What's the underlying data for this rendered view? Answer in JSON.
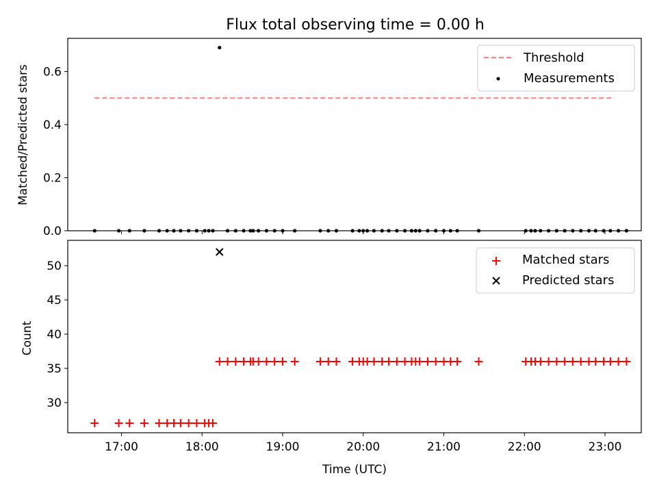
{
  "chart_data": [
    {
      "type": "scatter",
      "title": "Flux total observing time = 0.00 h",
      "xlabel": "",
      "ylabel": "Matched/Predicted stars",
      "xlim": [
        "16:20",
        "23:27"
      ],
      "ylim": [
        0,
        0.725
      ],
      "yticks": [
        "0.0",
        "0.2",
        "0.4",
        "0.6"
      ],
      "grid": false,
      "legend_placement": "upper right",
      "series": [
        {
          "name": "Threshold",
          "style": "dashed-line",
          "color": "#ff7a7a",
          "x": [
            "16:40",
            "23:07"
          ],
          "y": [
            0.5,
            0.5
          ]
        },
        {
          "name": "Measurements",
          "style": "dot",
          "color": "#000000",
          "x": [
            "16:40",
            "16:58",
            "17:06",
            "17:17",
            "17:28",
            "17:34",
            "17:39",
            "17:44",
            "17:50",
            "17:56",
            "18:02",
            "18:05",
            "18:08",
            "18:13",
            "18:19",
            "18:25",
            "18:31",
            "18:36",
            "18:38",
            "18:42",
            "18:48",
            "18:54",
            "19:00",
            "19:09",
            "19:28",
            "19:34",
            "19:40",
            "19:52",
            "19:57",
            "20:00",
            "20:03",
            "20:08",
            "20:14",
            "20:19",
            "20:25",
            "20:31",
            "20:36",
            "20:39",
            "20:42",
            "20:48",
            "20:54",
            "21:00",
            "21:05",
            "21:10",
            "21:26",
            "22:01",
            "22:05",
            "22:08",
            "22:12",
            "22:18",
            "22:24",
            "22:30",
            "22:36",
            "22:42",
            "22:48",
            "22:53",
            "22:59",
            "23:04",
            "23:10",
            "23:16"
          ],
          "y": [
            0,
            0,
            0,
            0,
            0,
            0,
            0,
            0,
            0,
            0,
            0,
            0,
            0,
            0.69,
            0,
            0,
            0,
            0,
            0,
            0,
            0,
            0,
            0,
            0,
            0,
            0,
            0,
            0,
            0,
            0,
            0,
            0,
            0,
            0,
            0,
            0,
            0,
            0,
            0,
            0,
            0,
            0,
            0,
            0,
            0,
            0,
            0,
            0,
            0,
            0,
            0,
            0,
            0,
            0,
            0,
            0,
            0,
            0,
            0,
            0
          ]
        }
      ]
    },
    {
      "type": "scatter",
      "title": "",
      "xlabel": "Time (UTC)",
      "ylabel": "Count",
      "xlim": [
        "16:20",
        "23:27"
      ],
      "ylim": [
        25.6,
        53.7
      ],
      "xticks": [
        "17:00",
        "18:00",
        "19:00",
        "20:00",
        "21:00",
        "22:00",
        "23:00"
      ],
      "yticks": [
        "30",
        "35",
        "40",
        "45",
        "50"
      ],
      "grid": false,
      "legend_placement": "upper right",
      "series": [
        {
          "name": "Matched stars",
          "style": "plus",
          "color": "#ff0000",
          "x": [
            "16:40",
            "16:58",
            "17:06",
            "17:17",
            "17:28",
            "17:34",
            "17:39",
            "17:44",
            "17:50",
            "17:56",
            "18:02",
            "18:05",
            "18:08",
            "18:13",
            "18:19",
            "18:25",
            "18:31",
            "18:36",
            "18:38",
            "18:42",
            "18:48",
            "18:54",
            "19:00",
            "19:09",
            "19:28",
            "19:34",
            "19:40",
            "19:52",
            "19:57",
            "20:00",
            "20:03",
            "20:08",
            "20:14",
            "20:19",
            "20:25",
            "20:31",
            "20:36",
            "20:39",
            "20:42",
            "20:48",
            "20:54",
            "21:00",
            "21:05",
            "21:10",
            "21:26",
            "22:01",
            "22:05",
            "22:08",
            "22:12",
            "22:18",
            "22:24",
            "22:30",
            "22:36",
            "22:42",
            "22:48",
            "22:53",
            "22:59",
            "23:04",
            "23:10",
            "23:16"
          ],
          "y": [
            27,
            27,
            27,
            27,
            27,
            27,
            27,
            27,
            27,
            27,
            27,
            27,
            27,
            36,
            36,
            36,
            36,
            36,
            36,
            36,
            36,
            36,
            36,
            36,
            36,
            36,
            36,
            36,
            36,
            36,
            36,
            36,
            36,
            36,
            36,
            36,
            36,
            36,
            36,
            36,
            36,
            36,
            36,
            36,
            36,
            36,
            36,
            36,
            36,
            36,
            36,
            36,
            36,
            36,
            36,
            36,
            36,
            36,
            36,
            36
          ]
        },
        {
          "name": "Predicted stars",
          "style": "x",
          "color": "#000000",
          "x": [
            "18:13"
          ],
          "y": [
            52
          ]
        }
      ]
    }
  ]
}
